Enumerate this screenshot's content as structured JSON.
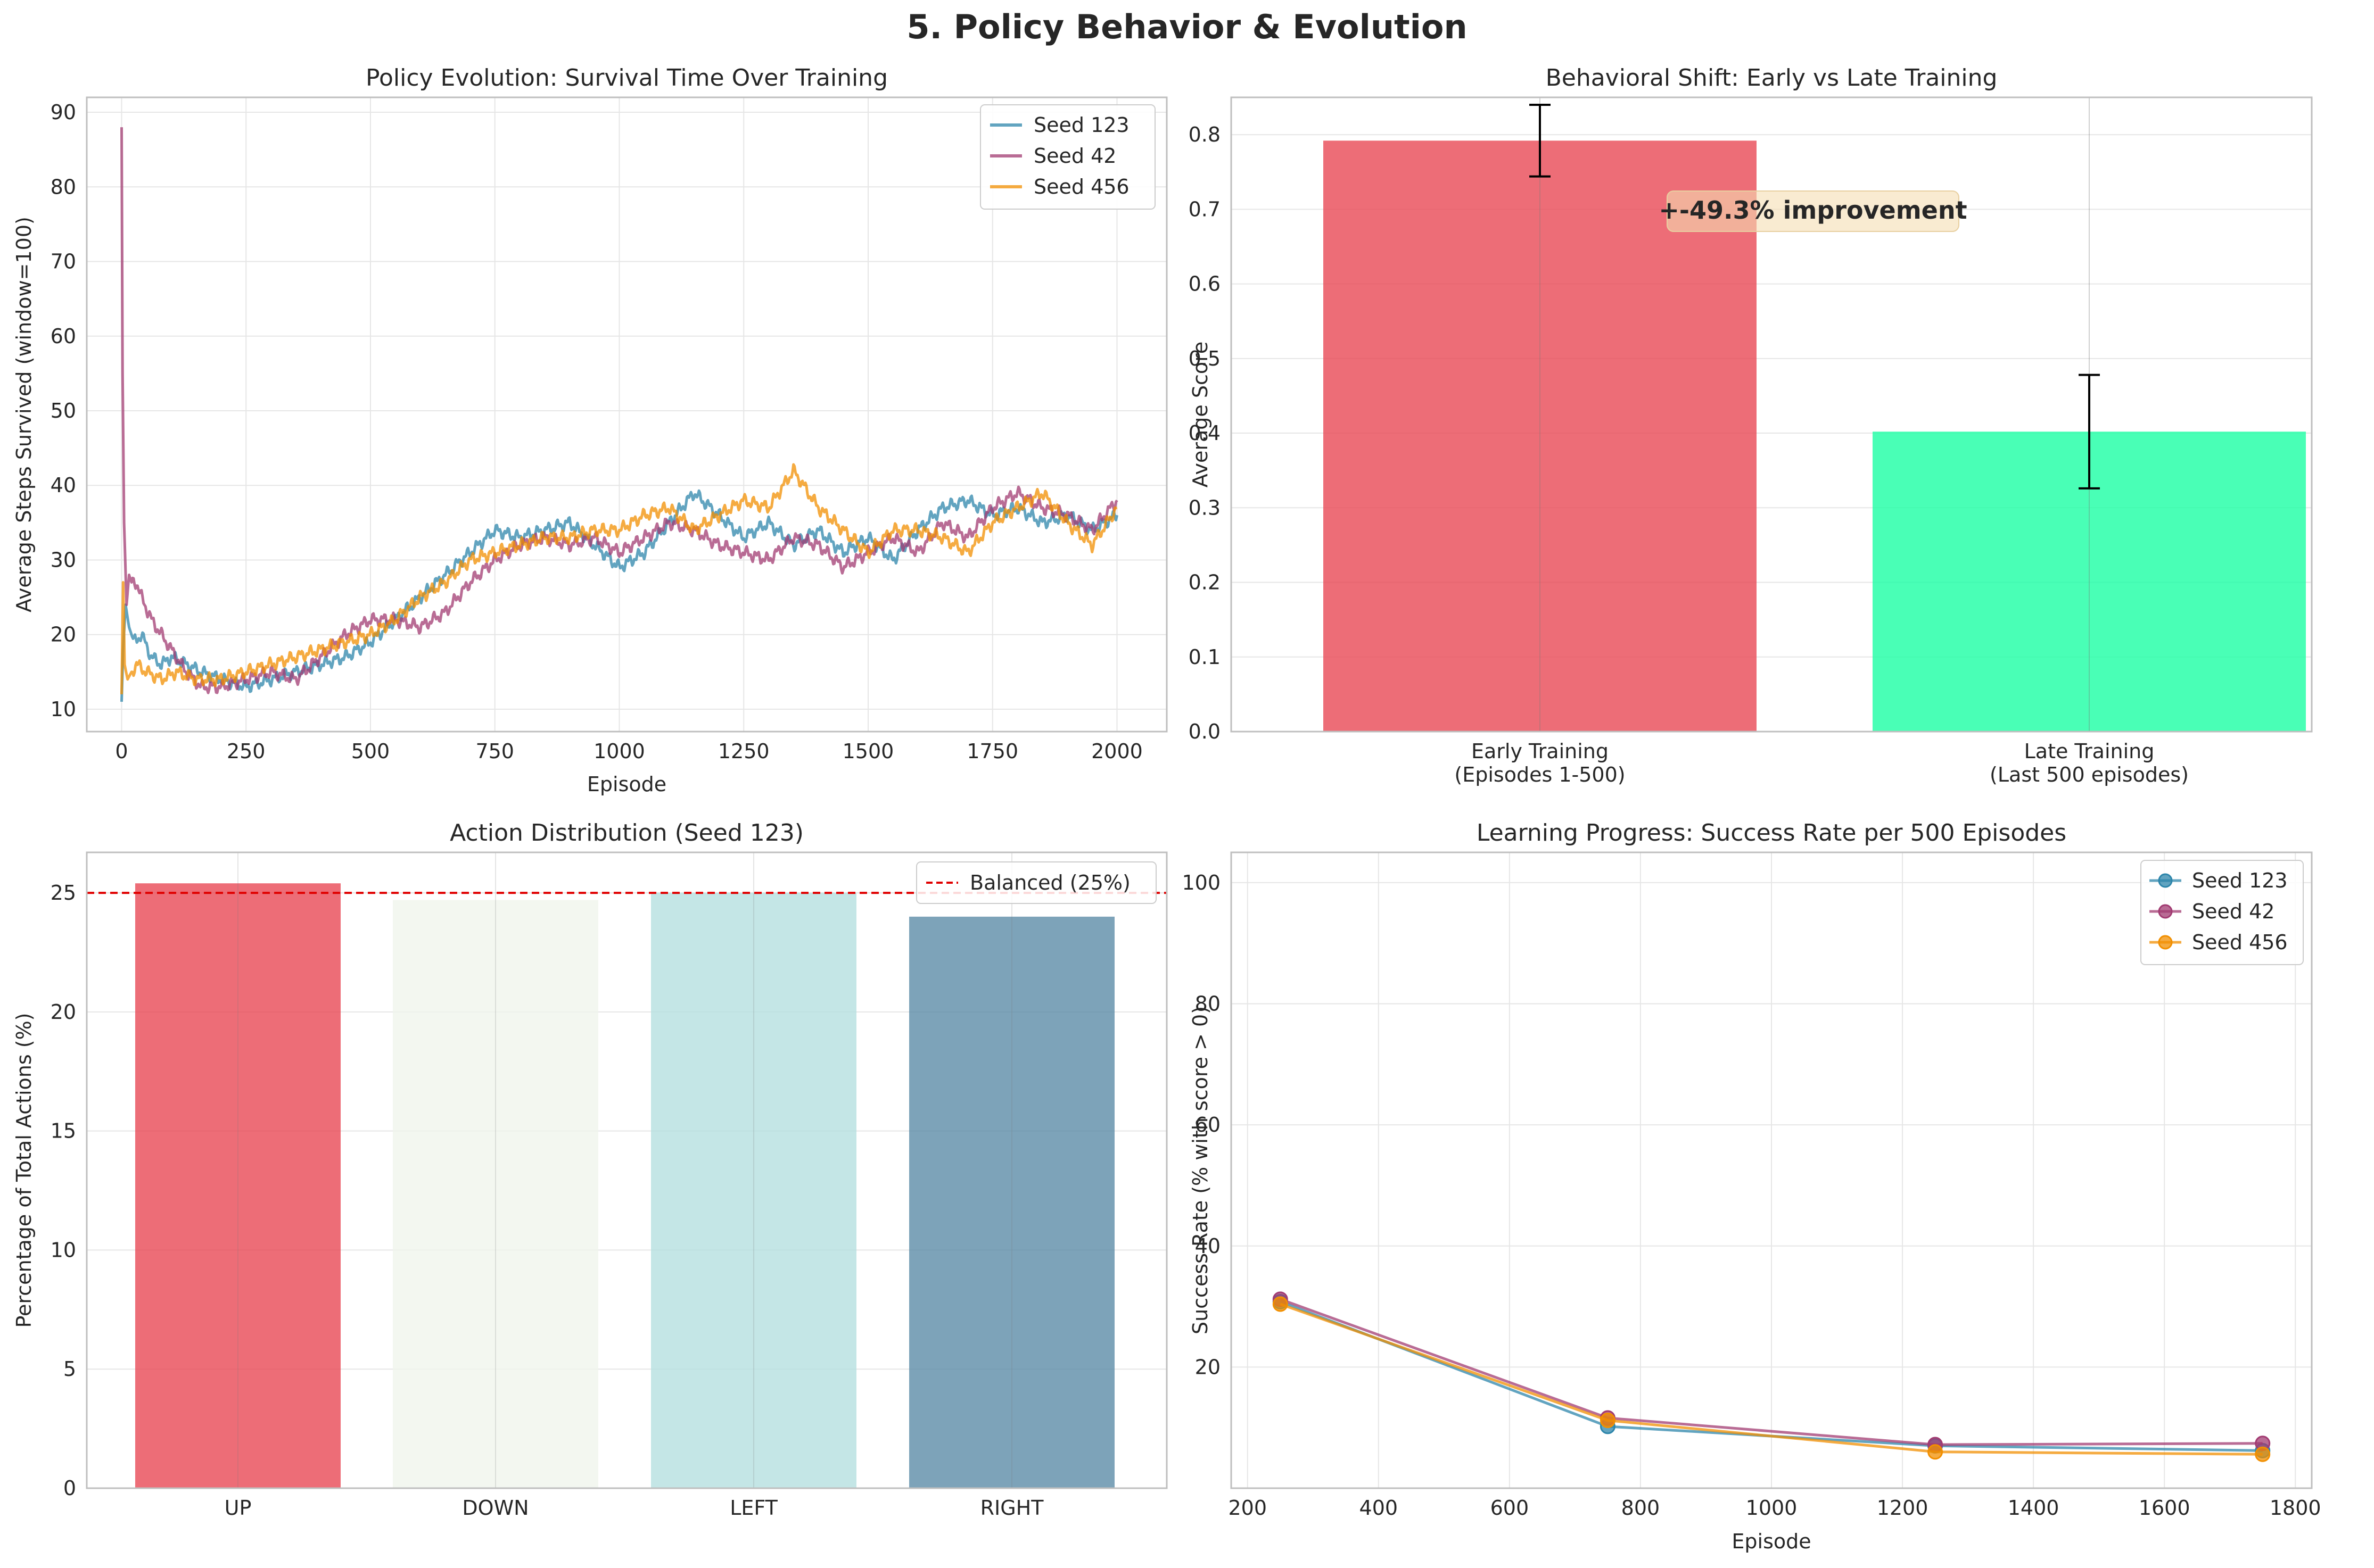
{
  "figure_title": "5. Policy Behavior & Evolution",
  "colors": {
    "seed_123": "#2E86AB",
    "seed_42": "#A23B72",
    "seed_456": "#F18F01",
    "early_bar": "#E84855",
    "late_bar": "#1BFFA4",
    "up": "#E84855",
    "down": "#F0F5EC",
    "left": "#B5E0E0",
    "right": "#5D8CA8",
    "balanced_line": "#E00000",
    "grid": "#E6E6E6",
    "axis": "#BFBFBF"
  },
  "chart_data": [
    {
      "id": "survival",
      "type": "line",
      "title": "Policy Evolution: Survival Time Over Training",
      "xlabel": "Episode",
      "ylabel": "Average Steps Survived (window=100)",
      "xlim": [
        -70,
        2100
      ],
      "ylim": [
        7,
        92
      ],
      "xticks": [
        "0",
        "250",
        "500",
        "750",
        "1000",
        "1250",
        "1500",
        "1750",
        "2000"
      ],
      "yticks": [
        "10",
        "20",
        "30",
        "40",
        "50",
        "60",
        "70",
        "80",
        "90"
      ],
      "grid": true,
      "legend": "top-right",
      "series": [
        {
          "name": "Seed 123",
          "x": [
            0,
            3,
            8,
            15,
            25,
            40,
            60,
            80,
            100,
            130,
            160,
            200,
            250,
            300,
            350,
            400,
            450,
            500,
            550,
            600,
            650,
            700,
            750,
            800,
            850,
            900,
            950,
            1000,
            1050,
            1100,
            1150,
            1200,
            1250,
            1300,
            1350,
            1400,
            1450,
            1500,
            1550,
            1600,
            1650,
            1700,
            1750,
            1800,
            1850,
            1900,
            1950,
            2000
          ],
          "y": [
            11,
            18,
            24,
            21,
            19,
            20,
            17,
            16,
            17,
            16,
            15,
            14,
            13,
            14,
            15,
            16,
            17,
            19,
            22,
            25,
            28,
            31,
            34,
            33,
            34,
            35,
            32,
            29,
            31,
            35,
            39,
            36,
            33,
            35,
            32,
            34,
            31,
            33,
            30,
            34,
            37,
            38,
            36,
            37,
            35,
            36,
            34,
            36
          ]
        },
        {
          "name": "Seed 42",
          "x": [
            0,
            2,
            5,
            10,
            15,
            20,
            30,
            40,
            60,
            80,
            100,
            130,
            160,
            200,
            250,
            300,
            350,
            400,
            450,
            500,
            550,
            600,
            650,
            700,
            750,
            800,
            850,
            900,
            950,
            1000,
            1050,
            1100,
            1150,
            1200,
            1250,
            1300,
            1350,
            1400,
            1450,
            1500,
            1550,
            1600,
            1650,
            1700,
            1750,
            1800,
            1850,
            1900,
            1950,
            2000
          ],
          "y": [
            88,
            55,
            35,
            24,
            28,
            27,
            27,
            25,
            22,
            20,
            18,
            15,
            13,
            13,
            14,
            15,
            14,
            17,
            20,
            22,
            22,
            21,
            23,
            27,
            30,
            32,
            33,
            32,
            33,
            31,
            33,
            35,
            34,
            32,
            31,
            30,
            33,
            32,
            29,
            31,
            33,
            31,
            35,
            33,
            37,
            39,
            37,
            36,
            34,
            38
          ]
        },
        {
          "name": "Seed 456",
          "x": [
            0,
            3,
            6,
            12,
            20,
            30,
            50,
            80,
            110,
            150,
            200,
            250,
            300,
            350,
            400,
            450,
            500,
            550,
            600,
            650,
            700,
            750,
            800,
            850,
            900,
            950,
            1000,
            1050,
            1100,
            1150,
            1200,
            1250,
            1300,
            1350,
            1400,
            1450,
            1500,
            1550,
            1600,
            1650,
            1700,
            1750,
            1800,
            1850,
            1900,
            1950,
            2000
          ],
          "y": [
            12,
            27,
            16,
            14,
            15,
            16,
            15,
            14,
            15,
            14,
            14,
            15,
            16,
            17,
            18,
            19,
            20,
            22,
            25,
            27,
            30,
            31,
            32,
            33,
            33,
            34,
            34,
            36,
            37,
            34,
            36,
            38,
            37,
            42,
            37,
            34,
            31,
            34,
            34,
            33,
            31,
            35,
            37,
            39,
            35,
            32,
            37
          ]
        }
      ]
    },
    {
      "id": "behavioral_shift",
      "type": "bar",
      "title": "Behavioral Shift: Early vs Late Training",
      "ylabel": "Average Score",
      "ylim": [
        0,
        0.85
      ],
      "yticks": [
        "0.0",
        "0.1",
        "0.2",
        "0.3",
        "0.4",
        "0.5",
        "0.6",
        "0.7",
        "0.8"
      ],
      "categories": [
        [
          "Early Training",
          "(Episodes 1-500)"
        ],
        [
          "Late Training",
          "(Last 500 episodes)"
        ]
      ],
      "values": [
        0.792,
        0.402
      ],
      "errors": [
        0.048,
        0.076
      ],
      "annotation": "+-49.3% improvement",
      "grid": true
    },
    {
      "id": "action_distribution",
      "type": "bar",
      "title": "Action Distribution (Seed 123)",
      "ylabel": "Percentage of Total Actions (%)",
      "ylim": [
        0,
        26.7
      ],
      "yticks": [
        "0",
        "5",
        "10",
        "15",
        "20",
        "25"
      ],
      "categories": [
        "UP",
        "DOWN",
        "LEFT",
        "RIGHT"
      ],
      "values": [
        25.4,
        24.7,
        25.0,
        24.0
      ],
      "reference_line": {
        "value": 25,
        "label": "Balanced (25%)"
      },
      "legend": "top-right",
      "grid": true
    },
    {
      "id": "success_rate",
      "type": "line",
      "title": "Learning Progress: Success Rate per 500 Episodes",
      "xlabel": "Episode",
      "ylabel": "Success Rate (% with score > 0)",
      "xlim": [
        175,
        1825
      ],
      "ylim": [
        0,
        105
      ],
      "xticks": [
        "200",
        "400",
        "600",
        "800",
        "1000",
        "1200",
        "1400",
        "1600",
        "1800"
      ],
      "yticks": [
        "20",
        "40",
        "60",
        "80",
        "100"
      ],
      "legend": "top-right",
      "grid": true,
      "x": [
        250,
        750,
        1250,
        1750
      ],
      "series": [
        {
          "name": "Seed 123",
          "values": [
            30.8,
            10.2,
            7.0,
            6.2
          ]
        },
        {
          "name": "Seed 42",
          "values": [
            31.2,
            11.6,
            7.2,
            7.4
          ]
        },
        {
          "name": "Seed 456",
          "values": [
            30.4,
            11.2,
            6.0,
            5.6
          ]
        }
      ]
    }
  ]
}
